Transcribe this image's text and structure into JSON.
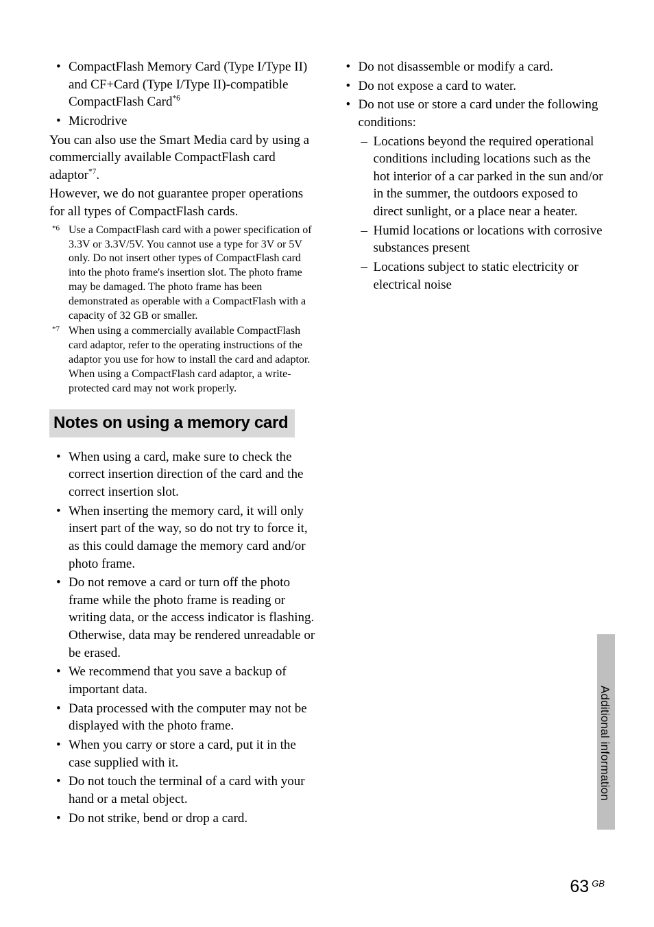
{
  "col1": {
    "bullets_top": [
      "CompactFlash Memory Card (Type I/Type II) and CF+Card (Type I/Type II)-compatible CompactFlash Card",
      "Microdrive"
    ],
    "sup_6": "*6",
    "para1a": "You can also use the Smart Media card by using a commercially available CompactFlash card adaptor",
    "sup_7": "*7",
    "para1b": ".",
    "para2": "However, we do not guarantee proper operations for all types of CompactFlash cards.",
    "footnotes": [
      {
        "marker": "*6",
        "text": "Use a CompactFlash card with a power specification of 3.3V or 3.3V/5V. You cannot use a type for 3V or 5V only. Do not insert other types of CompactFlash card into the photo frame's insertion slot. The photo frame may be damaged. The photo frame has been demonstrated as operable with a CompactFlash with a capacity of 32 GB or smaller."
      },
      {
        "marker": "*7",
        "text": "When using a commercially available CompactFlash card adaptor, refer to the operating instructions of the adaptor you use for how to install the card and adaptor. When using a CompactFlash card adaptor, a write-protected card may not work properly."
      }
    ],
    "heading": "Notes on using a memory card",
    "bullets_bottom": [
      "When using a card, make sure to check the correct insertion direction of the card and the correct insertion slot.",
      "When inserting the memory card, it will only insert part of the way, so do not try to force it, as this could damage the memory card and/or photo frame.",
      "Do not remove a card or turn off the photo frame while the photo frame is reading or writing data, or the access indicator is flashing. Otherwise, data may be rendered unreadable or be erased.",
      "We recommend that you save a backup of important data.",
      "Data processed with the computer may not be displayed with the photo frame.",
      "When you carry or store a card, put it in the case supplied with it.",
      "Do not touch the terminal of a card with your hand or a metal object.",
      "Do not strike, bend or drop a card."
    ]
  },
  "col2": {
    "bullets": [
      "Do not disassemble or modify a card.",
      "Do not expose a card to water.",
      "Do not use or store a card under the following conditions:"
    ],
    "sublist": [
      "Locations beyond the required operational conditions including locations such as the hot interior of a car parked in the sun and/or in the summer, the outdoors exposed to direct sunlight, or a place near a heater.",
      "Humid locations or locations with corrosive substances present",
      "Locations subject to static electricity or electrical noise"
    ]
  },
  "side_label": "Additional information",
  "footer": {
    "page": "63",
    "gb": "GB"
  }
}
